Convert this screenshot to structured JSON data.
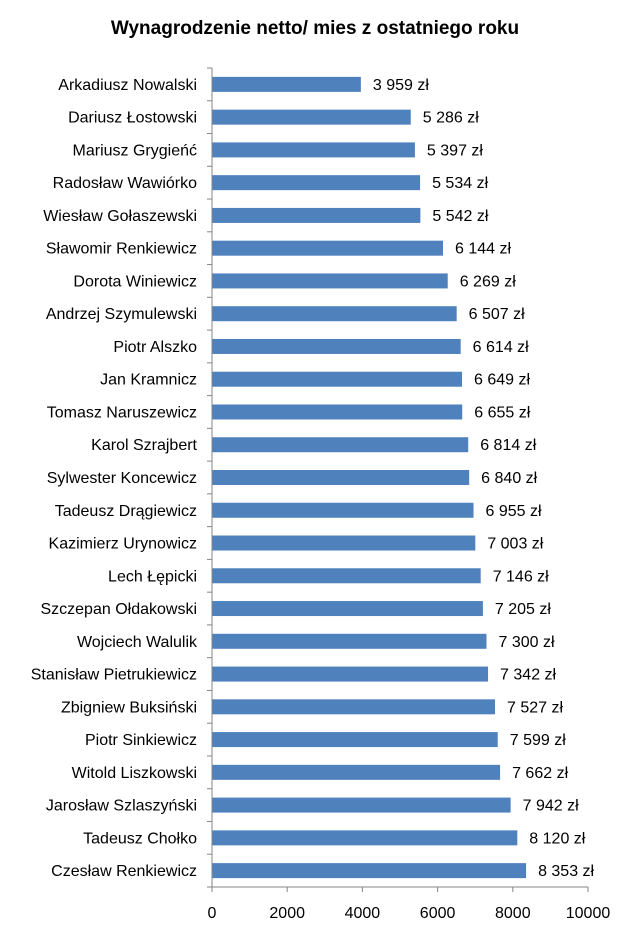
{
  "chart_data": {
    "type": "bar",
    "orientation": "horizontal",
    "title": "Wynagrodzenie netto/ mies z ostatniego roku",
    "xlabel": "",
    "ylabel": "",
    "categories": [
      "Arkadiusz Nowalski",
      "Dariusz Łostowski",
      "Mariusz Grygieńć",
      "Radosław Wawiórko",
      "Wiesław Gołaszewski",
      "Sławomir Renkiewicz",
      "Dorota Winiewicz",
      "Andrzej Szymulewski",
      "Piotr Alszko",
      "Jan Kramnicz",
      "Tomasz Naruszewicz",
      "Karol Szrajbert",
      "Sylwester Koncewicz",
      "Tadeusz Drągiewicz",
      "Kazimierz Urynowicz",
      "Lech Łępicki",
      "Szczepan Ołdakowski",
      "Wojciech Walulik",
      "Stanisław Pietrukiewicz",
      "Zbigniew Buksiński",
      "Piotr Sinkiewicz",
      "Witold Liszkowski",
      "Jarosław Szlaszyński",
      "Tadeusz Chołko",
      "Czesław Renkiewicz"
    ],
    "values": [
      3959,
      5286,
      5397,
      5534,
      5542,
      6144,
      6269,
      6507,
      6614,
      6649,
      6655,
      6814,
      6840,
      6955,
      7003,
      7146,
      7205,
      7300,
      7342,
      7527,
      7599,
      7662,
      7942,
      8120,
      8353
    ],
    "data_labels": [
      "3 959 zł",
      "5 286 zł",
      "5 397 zł",
      "5 534 zł",
      "5 542 zł",
      "6 144 zł",
      "6 269 zł",
      "6 507 zł",
      "6 614 zł",
      "6 649 zł",
      "6 655 zł",
      "6 814 zł",
      "6 840 zł",
      "6 955 zł",
      "7 003 zł",
      "7 146 zł",
      "7 205 zł",
      "7 300 zł",
      "7 342 zł",
      "7 527 zł",
      "7 599 zł",
      "7 662 zł",
      "7 942 zł",
      "8 120 zł",
      "8 353 zł"
    ],
    "xlim": [
      0,
      10000
    ],
    "x_ticks": [
      0,
      2000,
      4000,
      6000,
      8000,
      10000
    ],
    "grid": false,
    "legend": "none",
    "bar_color": "#4F81BD"
  }
}
